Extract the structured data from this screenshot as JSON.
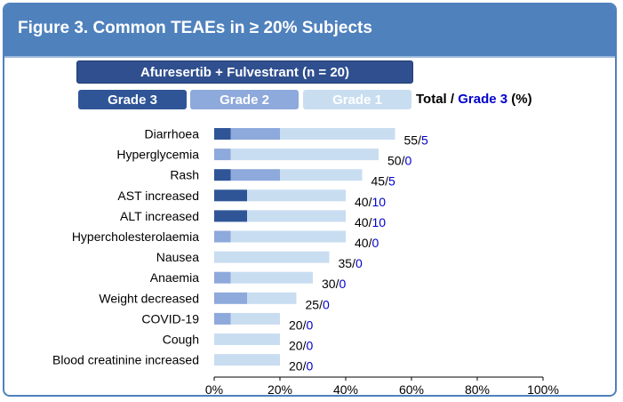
{
  "figure_title": "Figure 3. Common TEAEs in ≥ 20% Subjects",
  "banner": "Afuresertib + Fulvestrant  (n = 20)",
  "legend": {
    "grade3": "Grade 3",
    "grade2": "Grade 2",
    "grade1": "Grade 1",
    "total_prefix": "Total / ",
    "grade3_suffix": "Grade 3",
    "pct": " (%)"
  },
  "colors": {
    "frame": "#4f81bd",
    "grade3": "#2f5597",
    "grade2": "#8ea9db",
    "grade1": "#c9ddf1",
    "grade3_text": "#0000cc"
  },
  "chart_data": {
    "type": "bar",
    "orientation": "horizontal",
    "stacked": true,
    "title": "Figure 3. Common TEAEs in ≥ 20% Subjects",
    "xlabel": "",
    "ylabel": "",
    "xlim": [
      0,
      100
    ],
    "xticks": [
      "0%",
      "20%",
      "40%",
      "60%",
      "80%",
      "100%"
    ],
    "categories": [
      "Diarrhoea",
      "Hyperglycemia",
      "Rash",
      "AST increased",
      "ALT increased",
      "Hypercholesterolaemia",
      "Nausea",
      "Anaemia",
      "Weight decreased",
      "COVID-19",
      "Cough",
      "Blood creatinine increased"
    ],
    "series": [
      {
        "name": "Grade 3",
        "values": [
          5,
          0,
          5,
          10,
          10,
          0,
          0,
          0,
          0,
          0,
          0,
          0
        ]
      },
      {
        "name": "Grade 2",
        "values": [
          15,
          5,
          15,
          0,
          0,
          5,
          0,
          5,
          10,
          5,
          0,
          0
        ]
      },
      {
        "name": "Grade 1",
        "values": [
          35,
          45,
          25,
          30,
          30,
          35,
          35,
          25,
          15,
          15,
          20,
          20
        ]
      }
    ],
    "labels": [
      {
        "total": "55/",
        "grade3": "5"
      },
      {
        "total": "50/",
        "grade3": "0"
      },
      {
        "total": "45/",
        "grade3": "5"
      },
      {
        "total": "40/",
        "grade3": "10"
      },
      {
        "total": "40/",
        "grade3": "10"
      },
      {
        "total": "40/",
        "grade3": "0"
      },
      {
        "total": "35/",
        "grade3": "0"
      },
      {
        "total": "30/",
        "grade3": "0"
      },
      {
        "total": "25/",
        "grade3": "0"
      },
      {
        "total": "20/",
        "grade3": "0"
      },
      {
        "total": "20/",
        "grade3": "0"
      },
      {
        "total": "20/",
        "grade3": "0"
      }
    ]
  }
}
